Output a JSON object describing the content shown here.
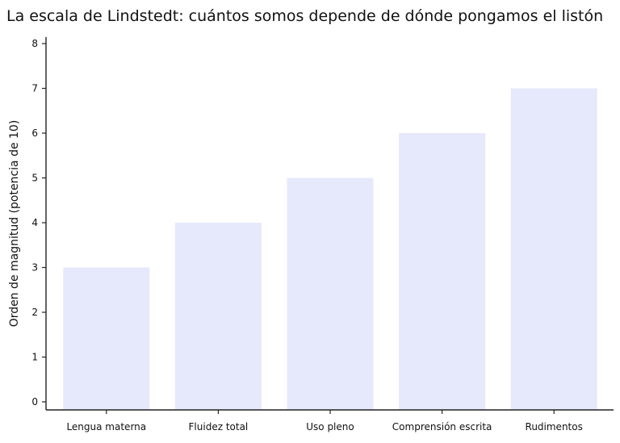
{
  "chart_data": {
    "type": "bar",
    "title": "La escala de Lindstedt: cuántos somos depende de dónde pongamos el listón",
    "xlabel": "",
    "ylabel": "Orden de magnitud (potencia de 10)",
    "categories": [
      "Lengua materna",
      "Fluidez total",
      "Uso pleno",
      "Comprensión escrita",
      "Rudimentos"
    ],
    "values": [
      3,
      4,
      5,
      6,
      7
    ],
    "ylim": [
      0,
      8
    ],
    "yticks": [
      0,
      1,
      2,
      3,
      4,
      5,
      6,
      7,
      8
    ],
    "grid": false,
    "legend": "none",
    "colors": {
      "bar": "#e6e8fb",
      "axis": "#222222",
      "text": "#111111"
    }
  }
}
